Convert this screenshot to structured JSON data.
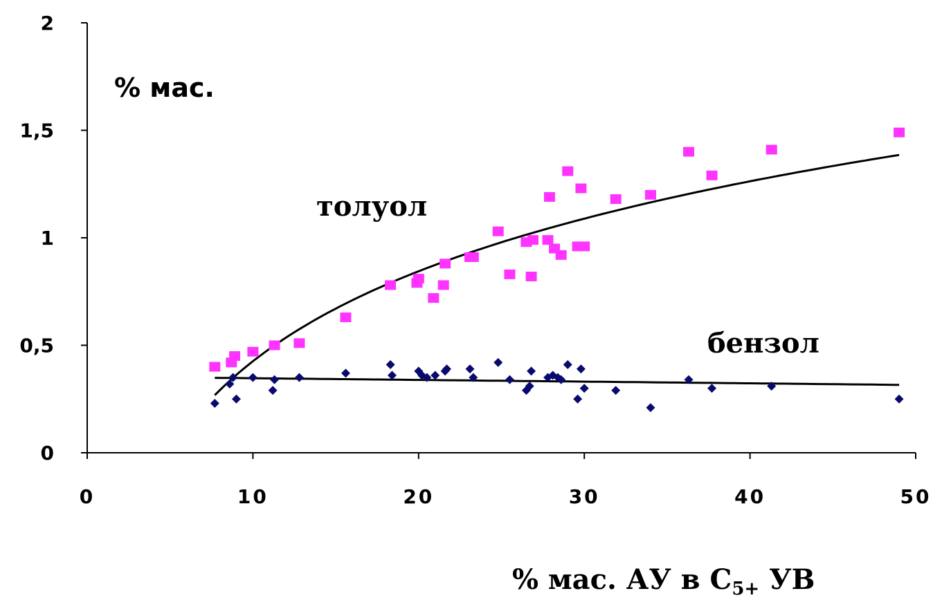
{
  "chart_data": {
    "type": "scatter",
    "ylabel": "% мас.",
    "xlabel": {
      "prefix": "% мас. АУ в С",
      "subscript": "5+",
      "suffix": " УВ"
    },
    "xlim": [
      0,
      50
    ],
    "ylim": [
      0,
      2
    ],
    "x_ticks": [
      "0",
      "10",
      "20",
      "30",
      "40",
      "50"
    ],
    "y_ticks": [
      "0",
      "0,5",
      "1",
      "1,5",
      "2"
    ],
    "x_tick_values": [
      0,
      10,
      20,
      30,
      40,
      50
    ],
    "y_tick_values": [
      0,
      0.5,
      1,
      1.5,
      2
    ],
    "grid": false,
    "series": [
      {
        "name": "толуол",
        "marker": "square",
        "color": "#ff33ff",
        "trendline": "logarithmic",
        "points": [
          [
            7.7,
            0.4
          ],
          [
            8.7,
            0.42
          ],
          [
            8.9,
            0.45
          ],
          [
            10.0,
            0.47
          ],
          [
            11.3,
            0.5
          ],
          [
            12.8,
            0.51
          ],
          [
            15.6,
            0.63
          ],
          [
            18.3,
            0.78
          ],
          [
            19.9,
            0.79
          ],
          [
            20.0,
            0.81
          ],
          [
            20.9,
            0.72
          ],
          [
            21.5,
            0.78
          ],
          [
            21.6,
            0.88
          ],
          [
            23.1,
            0.91
          ],
          [
            23.3,
            0.91
          ],
          [
            24.8,
            1.03
          ],
          [
            25.5,
            0.83
          ],
          [
            26.5,
            0.98
          ],
          [
            26.8,
            0.82
          ],
          [
            26.9,
            0.99
          ],
          [
            27.8,
            0.99
          ],
          [
            27.9,
            1.19
          ],
          [
            28.2,
            0.95
          ],
          [
            28.6,
            0.92
          ],
          [
            29.0,
            1.31
          ],
          [
            29.6,
            0.96
          ],
          [
            29.8,
            1.23
          ],
          [
            30.0,
            0.96
          ],
          [
            31.9,
            1.18
          ],
          [
            34.0,
            1.2
          ],
          [
            36.3,
            1.4
          ],
          [
            37.7,
            1.29
          ],
          [
            41.3,
            1.41
          ],
          [
            49.0,
            1.49
          ]
        ]
      },
      {
        "name": "бензол",
        "marker": "diamond",
        "color": "#0a0a6e",
        "trendline": "linear",
        "points": [
          [
            7.7,
            0.23
          ],
          [
            8.6,
            0.32
          ],
          [
            8.8,
            0.35
          ],
          [
            9.0,
            0.25
          ],
          [
            10.0,
            0.35
          ],
          [
            11.2,
            0.29
          ],
          [
            11.3,
            0.34
          ],
          [
            12.8,
            0.35
          ],
          [
            15.6,
            0.37
          ],
          [
            18.3,
            0.41
          ],
          [
            18.4,
            0.36
          ],
          [
            20.0,
            0.38
          ],
          [
            20.2,
            0.36
          ],
          [
            20.5,
            0.35
          ],
          [
            21.0,
            0.36
          ],
          [
            21.6,
            0.38
          ],
          [
            21.7,
            0.39
          ],
          [
            23.1,
            0.39
          ],
          [
            23.3,
            0.35
          ],
          [
            24.8,
            0.42
          ],
          [
            25.5,
            0.34
          ],
          [
            26.5,
            0.29
          ],
          [
            26.7,
            0.31
          ],
          [
            26.8,
            0.38
          ],
          [
            27.8,
            0.35
          ],
          [
            28.1,
            0.36
          ],
          [
            28.4,
            0.35
          ],
          [
            28.6,
            0.34
          ],
          [
            29.0,
            0.41
          ],
          [
            29.6,
            0.25
          ],
          [
            29.8,
            0.39
          ],
          [
            30.0,
            0.3
          ],
          [
            31.9,
            0.29
          ],
          [
            34.0,
            0.21
          ],
          [
            36.3,
            0.34
          ],
          [
            37.7,
            0.3
          ],
          [
            41.3,
            0.31
          ],
          [
            49.0,
            0.25
          ]
        ]
      }
    ]
  }
}
